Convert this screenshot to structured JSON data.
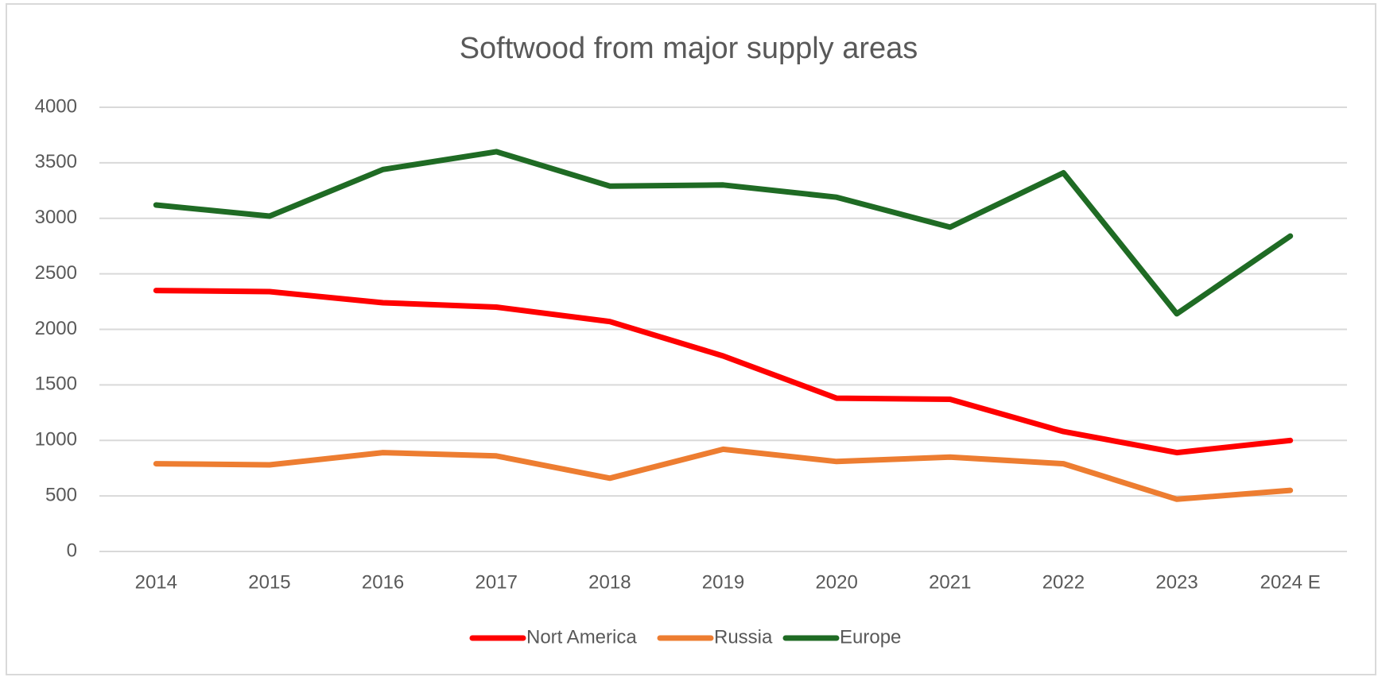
{
  "chart_data": {
    "type": "line",
    "title": "Softwood from major supply areas",
    "categories": [
      "2014",
      "2015",
      "2016",
      "2017",
      "2018",
      "2019",
      "2020",
      "2021",
      "2022",
      "2023",
      "2024 E"
    ],
    "series": [
      {
        "name": "Nort America",
        "color": "#ff0000",
        "values": [
          2350,
          2340,
          2240,
          2200,
          2070,
          1760,
          1380,
          1370,
          1080,
          890,
          1000
        ]
      },
      {
        "name": "Russia",
        "color": "#ed7d31",
        "values": [
          790,
          780,
          890,
          860,
          660,
          920,
          810,
          850,
          790,
          470,
          550
        ]
      },
      {
        "name": "Europe",
        "color": "#1f6b24",
        "values": [
          3120,
          3020,
          3440,
          3600,
          3290,
          3300,
          3190,
          2920,
          3410,
          2140,
          2840
        ]
      }
    ],
    "ylim": [
      0,
      4000
    ],
    "yticks": [
      0,
      500,
      1000,
      1500,
      2000,
      2500,
      3000,
      3500,
      4000
    ],
    "grid": true,
    "legend": "bottom"
  }
}
